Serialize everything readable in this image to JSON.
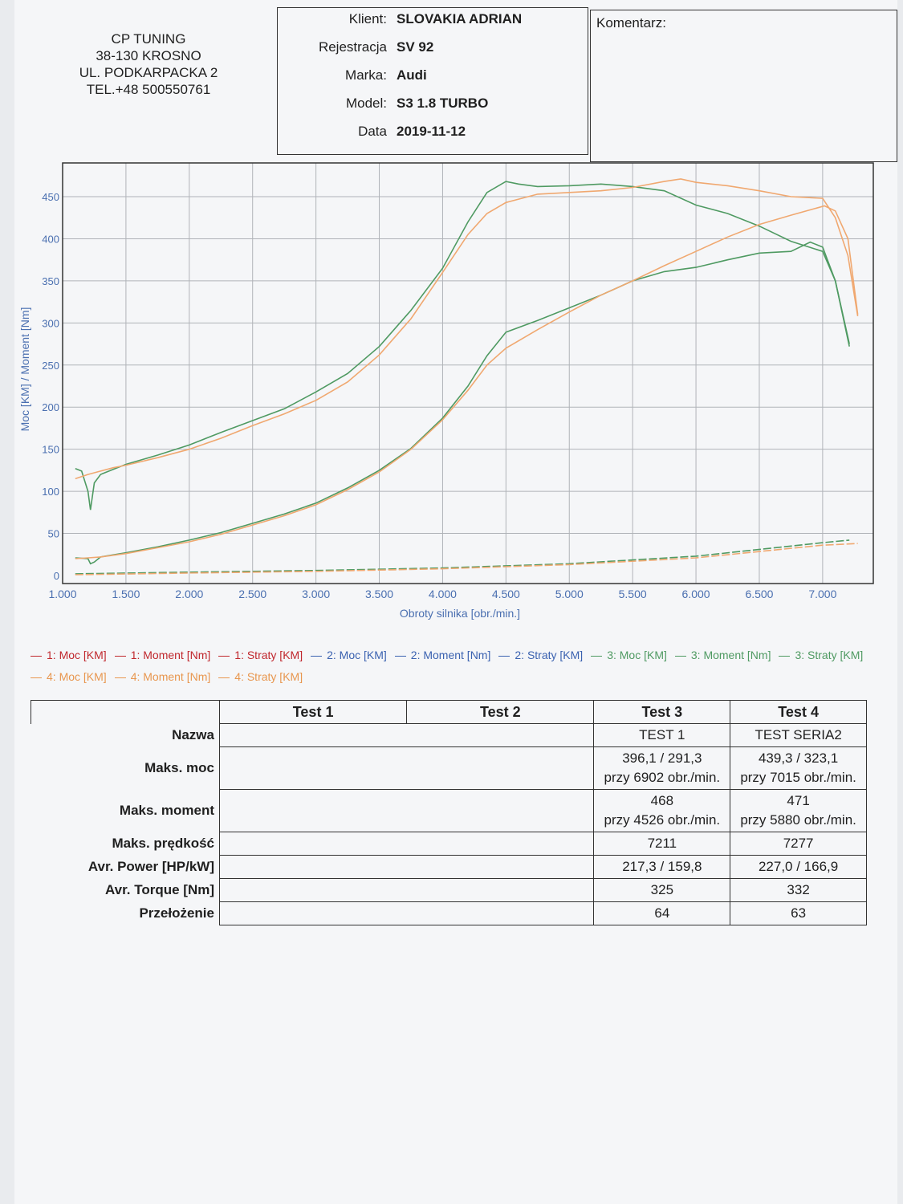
{
  "header": {
    "company_lines": [
      "CP TUNING",
      "38-130 KROSNO",
      "UL. PODKARPACKA 2",
      "TEL.+48 500550761"
    ],
    "fields": [
      {
        "label": "Klient:",
        "value": "SLOVAKIA ADRIAN"
      },
      {
        "label": "Rejestracja",
        "value": "SV 92"
      },
      {
        "label": "Marka:",
        "value": "Audi"
      },
      {
        "label": "Model:",
        "value": "S3 1.8 TURBO"
      },
      {
        "label": "Data",
        "value": "2019-11-12"
      }
    ],
    "comment_label": "Komentarz:"
  },
  "chart_data": {
    "type": "line",
    "xlabel": "Obroty silnika [obr./min.]",
    "ylabel": "Moc [KM] / Moment [Nm]",
    "xlim": [
      1000,
      7400
    ],
    "ylim": [
      0,
      450
    ],
    "xticks": [
      1000,
      1500,
      2000,
      2500,
      3000,
      3500,
      4000,
      4500,
      5000,
      5500,
      6000,
      6500,
      7000
    ],
    "xtick_labels": [
      "1.000",
      "1.500",
      "2.000",
      "2.500",
      "3.000",
      "3.500",
      "4.000",
      "4.500",
      "5.000",
      "5.500",
      "6.000",
      "6.500",
      "7.000"
    ],
    "yticks": [
      0,
      50,
      100,
      150,
      200,
      250,
      300,
      350,
      400,
      450
    ],
    "grid": true,
    "colors": {
      "green": "#4f9a62",
      "orange": "#f0a870",
      "axis": "#4a6fb0",
      "grid": "#b0b3b8"
    },
    "series": [
      {
        "name": "3: Moment [Nm]",
        "color": "#4f9a62",
        "x": [
          1100,
          1150,
          1200,
          1220,
          1250,
          1300,
          1400,
          1500,
          1750,
          2000,
          2250,
          2500,
          2750,
          3000,
          3250,
          3500,
          3750,
          4000,
          4200,
          4350,
          4500,
          4600,
          4750,
          5000,
          5250,
          5500,
          5750,
          6000,
          6250,
          6500,
          6750,
          7000,
          7100,
          7211
        ],
        "y": [
          127,
          124,
          100,
          78,
          110,
          120,
          126,
          132,
          143,
          155,
          170,
          184,
          198,
          218,
          240,
          272,
          315,
          365,
          420,
          455,
          468,
          465,
          462,
          463,
          465,
          462,
          457,
          440,
          430,
          415,
          397,
          385,
          350,
          272
        ]
      },
      {
        "name": "4: Moment [Nm]",
        "color": "#f0a870",
        "x": [
          1100,
          1200,
          1300,
          1400,
          1500,
          1750,
          2000,
          2250,
          2500,
          2750,
          3000,
          3250,
          3500,
          3750,
          4000,
          4200,
          4350,
          4500,
          4750,
          5000,
          5250,
          5500,
          5750,
          5880,
          6000,
          6250,
          6500,
          6750,
          7000,
          7100,
          7200,
          7277
        ],
        "y": [
          115,
          120,
          124,
          128,
          131,
          140,
          150,
          163,
          178,
          192,
          208,
          230,
          262,
          305,
          360,
          405,
          430,
          443,
          453,
          455,
          457,
          461,
          468,
          471,
          467,
          463,
          457,
          450,
          448,
          425,
          380,
          308
        ]
      },
      {
        "name": "3: Moc [KM]",
        "color": "#4f9a62",
        "x": [
          1100,
          1200,
          1220,
          1250,
          1300,
          1500,
          1750,
          2000,
          2250,
          2500,
          2750,
          3000,
          3250,
          3500,
          3750,
          4000,
          4200,
          4350,
          4500,
          4750,
          5000,
          5250,
          5500,
          5750,
          6000,
          6250,
          6500,
          6750,
          6902,
          7000,
          7100,
          7211
        ],
        "y": [
          21,
          20,
          14,
          16,
          22,
          27,
          34,
          42,
          51,
          62,
          73,
          86,
          104,
          125,
          151,
          187,
          225,
          261,
          289,
          303,
          318,
          333,
          350,
          361,
          366,
          375,
          383,
          385,
          396,
          390,
          350,
          275
        ]
      },
      {
        "name": "4: Moc [KM]",
        "color": "#f0a870",
        "x": [
          1100,
          1200,
          1300,
          1500,
          1750,
          2000,
          2250,
          2500,
          2750,
          3000,
          3250,
          3500,
          3750,
          4000,
          4200,
          4350,
          4500,
          4750,
          5000,
          5250,
          5500,
          5750,
          6000,
          6250,
          6500,
          6750,
          7015,
          7100,
          7200,
          7277
        ],
        "y": [
          20,
          21,
          22,
          26,
          33,
          40,
          49,
          60,
          71,
          84,
          102,
          123,
          150,
          185,
          220,
          250,
          270,
          292,
          313,
          333,
          350,
          368,
          385,
          402,
          417,
          428,
          439,
          433,
          400,
          310
        ]
      },
      {
        "name": "3: Straty [KM]",
        "color": "#4f9a62",
        "x": [
          1100,
          2000,
          3000,
          4000,
          5000,
          6000,
          7000,
          7211
        ],
        "y": [
          2,
          4,
          6,
          9,
          14,
          23,
          39,
          42
        ]
      },
      {
        "name": "4: Straty [KM]",
        "color": "#f0a870",
        "x": [
          1100,
          2000,
          3000,
          4000,
          5000,
          6000,
          7000,
          7277
        ],
        "y": [
          1,
          3,
          5,
          8,
          13,
          21,
          36,
          38
        ]
      }
    ]
  },
  "legend": [
    {
      "label": "1: Moc [KM]",
      "color": "#c0272d"
    },
    {
      "label": "1: Moment [Nm]",
      "color": "#c0272d"
    },
    {
      "label": "1: Straty [KM]",
      "color": "#c0272d"
    },
    {
      "label": "2: Moc [KM]",
      "color": "#3b62b0"
    },
    {
      "label": "2: Moment [Nm]",
      "color": "#3b62b0"
    },
    {
      "label": "2: Straty [KM]",
      "color": "#3b62b0"
    },
    {
      "label": "3: Moc [KM]",
      "color": "#4f9a62"
    },
    {
      "label": "3: Moment [Nm]",
      "color": "#4f9a62"
    },
    {
      "label": "3: Straty [KM]",
      "color": "#4f9a62"
    },
    {
      "label": "4: Moc [KM]",
      "color": "#e8964e"
    },
    {
      "label": "4: Moment [Nm]",
      "color": "#e8964e"
    },
    {
      "label": "4: Straty [KM]",
      "color": "#e8964e"
    }
  ],
  "results": {
    "headers": [
      "Test 1",
      "Test 2",
      "Test 3",
      "Test 4"
    ],
    "rows": [
      {
        "label": "Nazwa",
        "t3": "TEST 1",
        "t4": "TEST SERIA2"
      },
      {
        "label": "Maks. moc",
        "t3": "396,1 / 291,3\nprzy 6902 obr./min.",
        "t4": "439,3 / 323,1\nprzy 7015 obr./min."
      },
      {
        "label": "Maks. moment",
        "t3": "468\nprzy 4526 obr./min.",
        "t4": "471\nprzy 5880 obr./min."
      },
      {
        "label": "Maks. prędkość",
        "t3": "7211",
        "t4": "7277"
      },
      {
        "label": "Avr. Power [HP/kW]",
        "t3": "217,3 / 159,8",
        "t4": "227,0 / 166,9"
      },
      {
        "label": "Avr. Torque [Nm]",
        "t3": "325",
        "t4": "332"
      },
      {
        "label": "Przełożenie",
        "t3": "64",
        "t4": "63"
      }
    ]
  }
}
